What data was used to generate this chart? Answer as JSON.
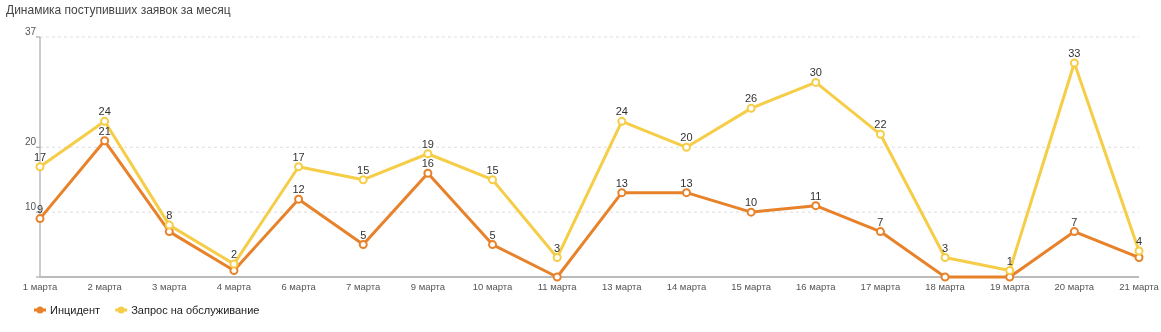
{
  "chart_data": {
    "type": "line",
    "title": "Динамика поступивших заявок за месяц",
    "categories": [
      "1 марта",
      "2 марта",
      "3 марта",
      "4 марта",
      "6 марта",
      "7 марта",
      "9 марта",
      "10 марта",
      "11 марта",
      "13 марта",
      "14 марта",
      "15 марта",
      "16 марта",
      "17 марта",
      "18 марта",
      "19 марта",
      "20 марта",
      "21 марта"
    ],
    "series": [
      {
        "name": "Инцидент",
        "color": "#e8822a",
        "values": [
          9,
          21,
          7,
          1,
          12,
          5,
          16,
          5,
          0,
          13,
          13,
          10,
          11,
          7,
          0,
          0,
          7,
          3
        ],
        "value_labels": [
          "9",
          "21",
          null,
          null,
          "12",
          "5",
          "16",
          "5",
          null,
          "13",
          "13",
          "10",
          "11",
          "7",
          null,
          null,
          "7",
          null
        ]
      },
      {
        "name": "Запрос на обслуживание",
        "color": "#f5cd47",
        "values": [
          17,
          24,
          8,
          2,
          17,
          15,
          19,
          15,
          3,
          24,
          20,
          26,
          30,
          22,
          3,
          1,
          33,
          4
        ],
        "value_labels": [
          "17",
          "24",
          "8",
          "2",
          "17",
          "15",
          "19",
          "15",
          "3",
          "24",
          "20",
          "26",
          "30",
          "22",
          "3",
          "1",
          "33",
          "4"
        ]
      }
    ],
    "ylim": [
      0,
      37
    ],
    "yticks": [
      {
        "value": 0,
        "label": null
      },
      10,
      20,
      37
    ],
    "grid": "y",
    "legend": "bottom left",
    "marker": "circle",
    "line_style": "solid"
  }
}
